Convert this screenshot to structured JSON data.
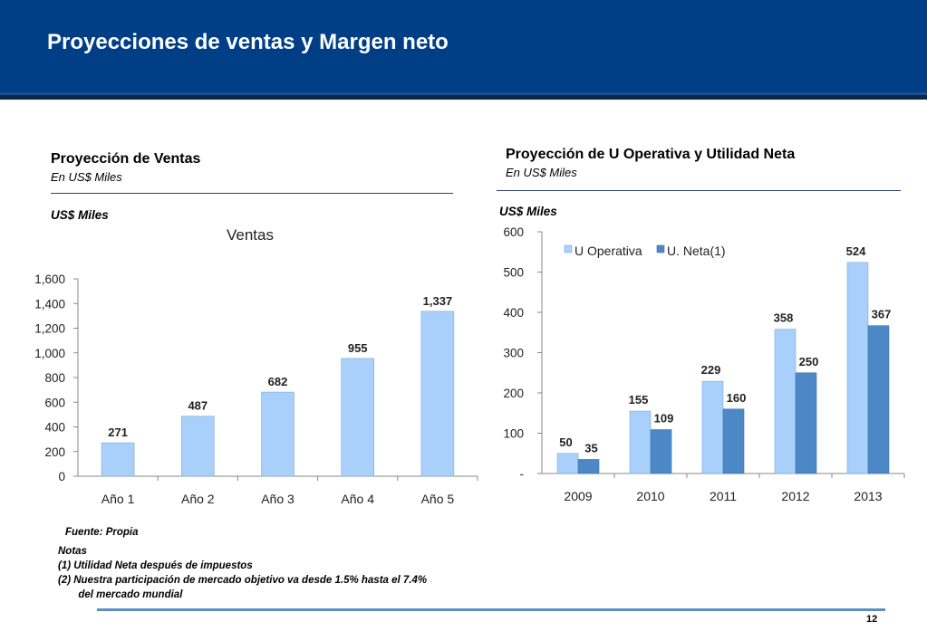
{
  "header": {
    "title": "Proyecciones de ventas y Margen neto"
  },
  "left": {
    "section_title": "Proyección de Ventas",
    "section_subtitle": "En US$ Miles",
    "unit_label": "US$ Miles"
  },
  "right": {
    "section_title": "Proyección de U Operativa y Utilidad Neta",
    "section_subtitle": "En US$ Miles",
    "unit_label": "US$ Miles"
  },
  "colors": {
    "header": "#003f86",
    "light_bar": "#a9d0fb",
    "dark_bar": "#4d88c6"
  },
  "chart_data": [
    {
      "type": "bar",
      "title": "Ventas",
      "categories": [
        "Año 1",
        "Año 2",
        "Año 3",
        "Año 4",
        "Año 5"
      ],
      "values": [
        271,
        487,
        682,
        955,
        1337
      ],
      "value_labels": [
        "271",
        "487",
        "682",
        "955",
        "1,337"
      ],
      "ylim": [
        0,
        1600
      ],
      "yticks": [
        0,
        200,
        400,
        600,
        800,
        1000,
        1200,
        1400,
        1600
      ],
      "ytick_labels": [
        "0",
        "200",
        "400",
        "600",
        "800",
        "1,000",
        "1,200",
        "1,400",
        "1,600"
      ],
      "grid": false
    },
    {
      "type": "bar",
      "categories": [
        "2009",
        "2010",
        "2011",
        "2012",
        "2013"
      ],
      "series": [
        {
          "name": "U Operativa",
          "values": [
            50,
            155,
            229,
            358,
            524
          ]
        },
        {
          "name": "U. Neta(1)",
          "values": [
            35,
            109,
            160,
            250,
            367
          ]
        }
      ],
      "ylim": [
        0,
        600
      ],
      "yticks": [
        0,
        100,
        200,
        300,
        400,
        500,
        600
      ],
      "ytick_labels": [
        "-",
        "100",
        "200",
        "300",
        "400",
        "500",
        "600"
      ],
      "legend": "top-left",
      "grid": false
    }
  ],
  "notes": {
    "source": "Fuente: Propia",
    "heading": "Notas",
    "items": [
      "(1)  Utilidad Neta después de impuestos",
      "(2)  Nuestra participación de mercado objetivo va desde 1.5% hasta el 7.4%",
      "       del mercado mundial"
    ]
  },
  "page_number": "12"
}
